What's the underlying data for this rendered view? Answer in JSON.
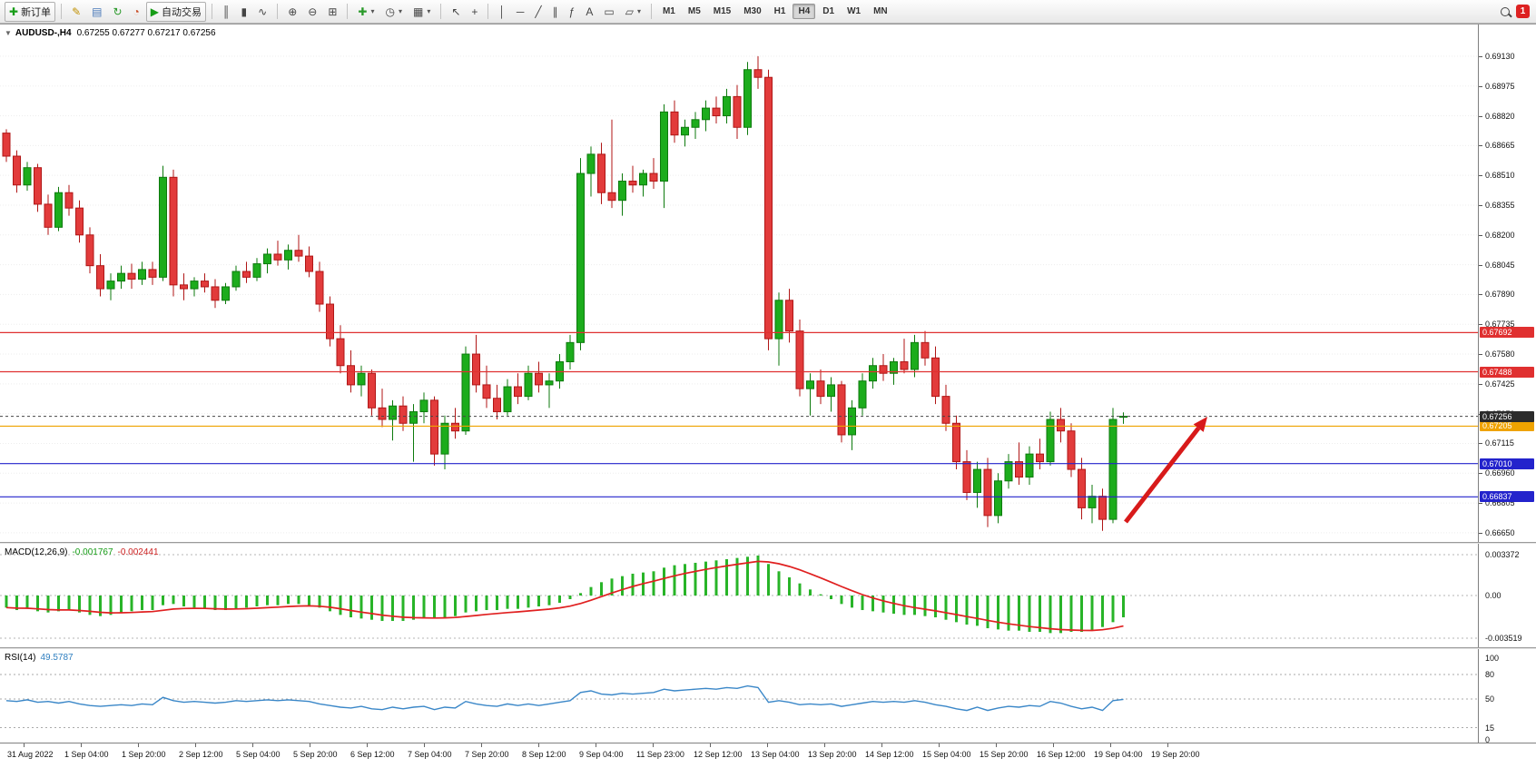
{
  "toolbar": {
    "timeframes": [
      "M1",
      "M5",
      "M15",
      "M30",
      "H1",
      "H4",
      "D1",
      "W1",
      "MN"
    ],
    "active_timeframe": "H4",
    "notification_count": "1",
    "items": [
      {
        "kind": "labelbtn",
        "name": "new-order-button",
        "glyph": "✚",
        "color": "#169c16",
        "label": "新订单"
      },
      {
        "kind": "sep"
      },
      {
        "kind": "icon",
        "name": "metaeditor-icon",
        "glyph": "✎",
        "color": "#c09000"
      },
      {
        "kind": "icon",
        "name": "market-watch-icon",
        "glyph": "▤",
        "color": "#4878b8"
      },
      {
        "kind": "icon",
        "name": "refresh-icon",
        "glyph": "↻",
        "color": "#2a9a2a"
      },
      {
        "kind": "icon",
        "name": "history-center-icon",
        "glyph": "◔",
        "color": "#c84820"
      },
      {
        "kind": "labelbtn",
        "name": "autotrading-button",
        "glyph": "▶",
        "color": "#169c16",
        "label": "自动交易"
      },
      {
        "kind": "sep"
      },
      {
        "kind": "icon",
        "name": "bar-chart-icon",
        "glyph": "║",
        "color": "#444"
      },
      {
        "kind": "icon",
        "name": "candlestick-icon",
        "glyph": "▮",
        "color": "#444"
      },
      {
        "kind": "icon",
        "name": "line-chart-icon",
        "glyph": "∿",
        "color": "#444"
      },
      {
        "kind": "sep"
      },
      {
        "kind": "icon",
        "name": "zoom-in-icon",
        "glyph": "⊕",
        "color": "#444"
      },
      {
        "kind": "icon",
        "name": "zoom-out-icon",
        "glyph": "⊖",
        "color": "#444"
      },
      {
        "kind": "icon",
        "name": "tile-windows-icon",
        "glyph": "⊞",
        "color": "#444"
      },
      {
        "kind": "sep"
      },
      {
        "kind": "icon",
        "name": "indicators-icon",
        "glyph": "✚",
        "color": "#2a9a2a",
        "caret": true
      },
      {
        "kind": "icon",
        "name": "periods-icon",
        "glyph": "◷",
        "color": "#444",
        "caret": true
      },
      {
        "kind": "icon",
        "name": "templates-icon",
        "glyph": "▦",
        "color": "#444",
        "caret": true
      },
      {
        "kind": "sep"
      },
      {
        "kind": "icon",
        "name": "cursor-icon",
        "glyph": "↖",
        "color": "#444"
      },
      {
        "kind": "icon",
        "name": "crosshair-icon",
        "glyph": "+",
        "color": "#444"
      },
      {
        "kind": "sep"
      },
      {
        "kind": "icon",
        "name": "vertical-line-icon",
        "glyph": "│",
        "color": "#444"
      },
      {
        "kind": "icon",
        "name": "horizontal-line-icon",
        "glyph": "─",
        "color": "#444"
      },
      {
        "kind": "icon",
        "name": "trendline-icon",
        "glyph": "╱",
        "color": "#444"
      },
      {
        "kind": "icon",
        "name": "channel-icon",
        "glyph": "∥",
        "color": "#444"
      },
      {
        "kind": "icon",
        "name": "fibonacci-icon",
        "glyph": "ƒ",
        "color": "#444"
      },
      {
        "kind": "icon",
        "name": "text-icon",
        "glyph": "A",
        "color": "#444"
      },
      {
        "kind": "icon",
        "name": "label-icon",
        "glyph": "▭",
        "color": "#444"
      },
      {
        "kind": "icon",
        "name": "shapes-icon",
        "glyph": "▱",
        "color": "#444",
        "caret": true
      },
      {
        "kind": "sep"
      },
      {
        "kind": "tfset"
      },
      {
        "kind": "spacer"
      },
      {
        "kind": "icon",
        "name": "search-icon",
        "shape": "lens"
      },
      {
        "kind": "badge",
        "name": "notification-badge"
      }
    ]
  },
  "chart": {
    "one_click_glyph": "▼",
    "title_symbol": "AUDUSD-,H4",
    "title_ohlc": "0.67255 0.67277 0.67217 0.67256"
  },
  "chart_data": {
    "type": "candlestick",
    "symbol": "AUDUSD-",
    "timeframe": "H4",
    "ohlc_display": {
      "open": "0.67255",
      "high": "0.67277",
      "low": "0.67217",
      "close": "0.67256"
    },
    "colors": {
      "up": "#1cac1c",
      "up_border": "#0d7a0d",
      "down": "#e23b3b",
      "down_border": "#b01616",
      "macd_hist": "#28b428",
      "macd_signal": "#e02020",
      "rsi_line": "#3a87c8",
      "hline_red": "#e03030",
      "hline_orange": "#efa300",
      "hline_blue": "#2323cc",
      "current_label_bg": "#2b2b2b",
      "arrow": "#d81a1a"
    },
    "price_axis_labels": [
      "0.69130",
      "0.68975",
      "0.68820",
      "0.68665",
      "0.68510",
      "0.68355",
      "0.68200",
      "0.68045",
      "0.67890",
      "0.67735",
      "0.67580",
      "0.67425",
      "0.67270",
      "0.67115",
      "0.66960",
      "0.66805",
      "0.66650"
    ],
    "time_axis_labels": [
      "31 Aug 2022",
      "1 Sep 04:00",
      "1 Sep 20:00",
      "2 Sep 12:00",
      "5 Sep 04:00",
      "5 Sep 20:00",
      "6 Sep 12:00",
      "7 Sep 04:00",
      "7 Sep 20:00",
      "8 Sep 12:00",
      "9 Sep 04:00",
      "11 Sep 23:00",
      "12 Sep 12:00",
      "13 Sep 04:00",
      "13 Sep 20:00",
      "14 Sep 12:00",
      "15 Sep 04:00",
      "15 Sep 20:00",
      "16 Sep 12:00",
      "19 Sep 04:00",
      "19 Sep 20:00"
    ],
    "hlines": [
      {
        "price": 0.67692,
        "label": "0.67692",
        "color_key": "hline_red"
      },
      {
        "price": 0.67488,
        "label": "0.67488",
        "color_key": "hline_red"
      },
      {
        "price": 0.67205,
        "label": "0.67205",
        "color_key": "hline_orange"
      },
      {
        "price": 0.6701,
        "label": "0.67010",
        "color_key": "hline_blue"
      },
      {
        "price": 0.66837,
        "label": "0.66837",
        "color_key": "hline_blue"
      }
    ],
    "current_price": {
      "value": 0.67256,
      "label": "0.67256"
    },
    "annotation_arrow": {
      "from": [
        1240,
        548
      ],
      "to": [
        1330,
        432
      ]
    },
    "candles": [
      [
        0.6873,
        0.6875,
        0.6858,
        0.6861
      ],
      [
        0.6861,
        0.6864,
        0.6842,
        0.6846
      ],
      [
        0.6846,
        0.6858,
        0.6843,
        0.6855
      ],
      [
        0.6855,
        0.6857,
        0.6832,
        0.6836
      ],
      [
        0.6836,
        0.6841,
        0.682,
        0.6824
      ],
      [
        0.6824,
        0.6845,
        0.6822,
        0.6842
      ],
      [
        0.6842,
        0.6846,
        0.683,
        0.6834
      ],
      [
        0.6834,
        0.6838,
        0.6816,
        0.682
      ],
      [
        0.682,
        0.6824,
        0.68,
        0.6804
      ],
      [
        0.6804,
        0.681,
        0.6788,
        0.6792
      ],
      [
        0.6792,
        0.68,
        0.6786,
        0.6796
      ],
      [
        0.6796,
        0.6804,
        0.6792,
        0.68
      ],
      [
        0.68,
        0.6805,
        0.6792,
        0.6797
      ],
      [
        0.6797,
        0.6806,
        0.6794,
        0.6802
      ],
      [
        0.6802,
        0.6806,
        0.6794,
        0.6798
      ],
      [
        0.6798,
        0.6856,
        0.6796,
        0.685
      ],
      [
        0.685,
        0.6854,
        0.6788,
        0.6794
      ],
      [
        0.6794,
        0.68,
        0.6786,
        0.6792
      ],
      [
        0.6792,
        0.6798,
        0.6788,
        0.6796
      ],
      [
        0.6796,
        0.68,
        0.679,
        0.6793
      ],
      [
        0.6793,
        0.6797,
        0.6782,
        0.6786
      ],
      [
        0.6786,
        0.6795,
        0.6784,
        0.6793
      ],
      [
        0.6793,
        0.6804,
        0.6791,
        0.6801
      ],
      [
        0.6801,
        0.6806,
        0.6795,
        0.6798
      ],
      [
        0.6798,
        0.6808,
        0.6796,
        0.6805
      ],
      [
        0.6805,
        0.6813,
        0.68,
        0.681
      ],
      [
        0.681,
        0.6817,
        0.6804,
        0.6807
      ],
      [
        0.6807,
        0.6815,
        0.6802,
        0.6812
      ],
      [
        0.6812,
        0.682,
        0.6806,
        0.6809
      ],
      [
        0.6809,
        0.6814,
        0.6798,
        0.6801
      ],
      [
        0.6801,
        0.6806,
        0.678,
        0.6784
      ],
      [
        0.6784,
        0.6788,
        0.6762,
        0.6766
      ],
      [
        0.6766,
        0.6773,
        0.6748,
        0.6752
      ],
      [
        0.6752,
        0.676,
        0.6738,
        0.6742
      ],
      [
        0.6742,
        0.6752,
        0.6736,
        0.6748
      ],
      [
        0.6748,
        0.675,
        0.6726,
        0.673
      ],
      [
        0.673,
        0.674,
        0.672,
        0.6724
      ],
      [
        0.6724,
        0.6734,
        0.6713,
        0.6731
      ],
      [
        0.6731,
        0.6736,
        0.6718,
        0.6722
      ],
      [
        0.6722,
        0.6732,
        0.6702,
        0.6728
      ],
      [
        0.6728,
        0.6738,
        0.6722,
        0.6734
      ],
      [
        0.6734,
        0.6736,
        0.67,
        0.6706
      ],
      [
        0.6706,
        0.6726,
        0.6698,
        0.6722
      ],
      [
        0.6722,
        0.673,
        0.6714,
        0.6718
      ],
      [
        0.6718,
        0.6762,
        0.6716,
        0.6758
      ],
      [
        0.6758,
        0.6768,
        0.6738,
        0.6742
      ],
      [
        0.6742,
        0.6752,
        0.673,
        0.6735
      ],
      [
        0.6735,
        0.6742,
        0.6724,
        0.6728
      ],
      [
        0.6728,
        0.6745,
        0.6726,
        0.6741
      ],
      [
        0.6741,
        0.6748,
        0.6732,
        0.6736
      ],
      [
        0.6736,
        0.6752,
        0.6734,
        0.6748
      ],
      [
        0.6748,
        0.6754,
        0.6738,
        0.6742
      ],
      [
        0.6742,
        0.6748,
        0.673,
        0.6744
      ],
      [
        0.6744,
        0.6758,
        0.674,
        0.6754
      ],
      [
        0.6754,
        0.6768,
        0.675,
        0.6764
      ],
      [
        0.6764,
        0.686,
        0.676,
        0.6852
      ],
      [
        0.6852,
        0.6866,
        0.684,
        0.6862
      ],
      [
        0.6862,
        0.6868,
        0.6836,
        0.6842
      ],
      [
        0.6842,
        0.688,
        0.6834,
        0.6838
      ],
      [
        0.6838,
        0.6852,
        0.683,
        0.6848
      ],
      [
        0.6848,
        0.6856,
        0.6842,
        0.6846
      ],
      [
        0.6846,
        0.6854,
        0.684,
        0.6852
      ],
      [
        0.6852,
        0.686,
        0.6844,
        0.6848
      ],
      [
        0.6848,
        0.6888,
        0.6834,
        0.6884
      ],
      [
        0.6884,
        0.689,
        0.6868,
        0.6872
      ],
      [
        0.6872,
        0.688,
        0.6866,
        0.6876
      ],
      [
        0.6876,
        0.6884,
        0.687,
        0.688
      ],
      [
        0.688,
        0.689,
        0.6874,
        0.6886
      ],
      [
        0.6886,
        0.6892,
        0.6878,
        0.6882
      ],
      [
        0.6882,
        0.6896,
        0.6878,
        0.6892
      ],
      [
        0.6892,
        0.6898,
        0.687,
        0.6876
      ],
      [
        0.6876,
        0.691,
        0.6872,
        0.6906
      ],
      [
        0.6906,
        0.6913,
        0.6896,
        0.6902
      ],
      [
        0.6902,
        0.6906,
        0.676,
        0.6766
      ],
      [
        0.6766,
        0.679,
        0.6752,
        0.6786
      ],
      [
        0.6786,
        0.6792,
        0.6764,
        0.677
      ],
      [
        0.677,
        0.6776,
        0.6736,
        0.674
      ],
      [
        0.674,
        0.6748,
        0.6726,
        0.6744
      ],
      [
        0.6744,
        0.675,
        0.6732,
        0.6736
      ],
      [
        0.6736,
        0.6746,
        0.6728,
        0.6742
      ],
      [
        0.6742,
        0.6744,
        0.6712,
        0.6716
      ],
      [
        0.6716,
        0.6734,
        0.6708,
        0.673
      ],
      [
        0.673,
        0.6748,
        0.6726,
        0.6744
      ],
      [
        0.6744,
        0.6756,
        0.674,
        0.6752
      ],
      [
        0.6752,
        0.6758,
        0.6744,
        0.6748
      ],
      [
        0.6748,
        0.6756,
        0.6742,
        0.6754
      ],
      [
        0.6754,
        0.6766,
        0.6748,
        0.675
      ],
      [
        0.675,
        0.6768,
        0.6746,
        0.6764
      ],
      [
        0.6764,
        0.677,
        0.6752,
        0.6756
      ],
      [
        0.6756,
        0.6762,
        0.6732,
        0.6736
      ],
      [
        0.6736,
        0.6742,
        0.6718,
        0.6722
      ],
      [
        0.6722,
        0.6726,
        0.6698,
        0.6702
      ],
      [
        0.6702,
        0.6708,
        0.6682,
        0.6686
      ],
      [
        0.6686,
        0.6702,
        0.6678,
        0.6698
      ],
      [
        0.6698,
        0.6704,
        0.6668,
        0.6674
      ],
      [
        0.6674,
        0.6696,
        0.667,
        0.6692
      ],
      [
        0.6692,
        0.6706,
        0.6688,
        0.6702
      ],
      [
        0.6702,
        0.6712,
        0.669,
        0.6694
      ],
      [
        0.6694,
        0.671,
        0.669,
        0.6706
      ],
      [
        0.6706,
        0.6714,
        0.6698,
        0.6702
      ],
      [
        0.6702,
        0.6728,
        0.67,
        0.6724
      ],
      [
        0.6724,
        0.673,
        0.6712,
        0.6718
      ],
      [
        0.6718,
        0.6722,
        0.6694,
        0.6698
      ],
      [
        0.6698,
        0.6704,
        0.6672,
        0.6678
      ],
      [
        0.6678,
        0.669,
        0.667,
        0.6684
      ],
      [
        0.6684,
        0.6688,
        0.6666,
        0.6672
      ],
      [
        0.6672,
        0.673,
        0.667,
        0.6724
      ],
      [
        0.67255,
        0.67277,
        0.67217,
        0.67256
      ]
    ],
    "indicators": {
      "macd": {
        "name": "MACD(12,26,9)",
        "value_main": "-0.001767",
        "value_signal": "-0.002441",
        "axis_labels": [
          {
            "value": 0.003372,
            "label": "0.003372"
          },
          {
            "value": 0,
            "label": "0.00"
          },
          {
            "value": -0.003519,
            "label": "-0.003519"
          }
        ],
        "histogram": [
          -0.001,
          -0.0012,
          -0.0011,
          -0.0013,
          -0.0014,
          -0.0013,
          -0.0012,
          -0.0014,
          -0.0016,
          -0.0017,
          -0.0016,
          -0.0014,
          -0.0013,
          -0.0012,
          -0.0012,
          -0.0008,
          -0.0007,
          -0.0009,
          -0.001,
          -0.0011,
          -0.0012,
          -0.0012,
          -0.0011,
          -0.001,
          -0.0009,
          -0.0008,
          -0.0008,
          -0.0007,
          -0.0007,
          -0.0008,
          -0.001,
          -0.0013,
          -0.0016,
          -0.0018,
          -0.0019,
          -0.002,
          -0.0021,
          -0.0021,
          -0.0021,
          -0.002,
          -0.0019,
          -0.0019,
          -0.0018,
          -0.0017,
          -0.0014,
          -0.0013,
          -0.0012,
          -0.0012,
          -0.0011,
          -0.0011,
          -0.001,
          -0.0009,
          -0.0008,
          -0.0006,
          -0.0003,
          0.0002,
          0.0007,
          0.0011,
          0.0014,
          0.0016,
          0.0018,
          0.0019,
          0.002,
          0.0023,
          0.0025,
          0.0026,
          0.0027,
          0.0028,
          0.0029,
          0.003,
          0.0031,
          0.0032,
          0.0033,
          0.0026,
          0.002,
          0.0015,
          0.001,
          0.0005,
          0.0001,
          -0.0003,
          -0.0007,
          -0.001,
          -0.0012,
          -0.0013,
          -0.0014,
          -0.0015,
          -0.0016,
          -0.0016,
          -0.0017,
          -0.0018,
          -0.002,
          -0.0022,
          -0.0024,
          -0.0025,
          -0.0027,
          -0.0028,
          -0.0029,
          -0.0029,
          -0.003,
          -0.003,
          -0.0031,
          -0.0031,
          -0.003,
          -0.003,
          -0.0029,
          -0.0026,
          -0.0022,
          -0.0018
        ],
        "signal_period": 9
      },
      "rsi": {
        "name": "RSI(14)",
        "value": "49.5787",
        "levels": [
          {
            "value": 100,
            "label": "100"
          },
          {
            "value": 80,
            "label": "80"
          },
          {
            "value": 50,
            "label": "50"
          },
          {
            "value": 15,
            "label": "15"
          },
          {
            "value": 0,
            "label": "0"
          }
        ],
        "values": [
          48,
          47,
          49,
          46,
          47,
          45,
          47,
          44,
          42,
          41,
          42,
          43,
          42,
          44,
          43,
          52,
          48,
          46,
          47,
          46,
          45,
          46,
          48,
          47,
          48,
          49,
          48,
          49,
          48,
          47,
          44,
          42,
          40,
          39,
          41,
          38,
          37,
          40,
          38,
          40,
          41,
          37,
          40,
          39,
          47,
          44,
          42,
          41,
          44,
          42,
          44,
          42,
          44,
          46,
          48,
          58,
          60,
          56,
          55,
          57,
          56,
          57,
          58,
          62,
          60,
          61,
          62,
          63,
          62,
          64,
          63,
          66,
          64,
          46,
          48,
          46,
          43,
          44,
          43,
          44,
          41,
          43,
          45,
          47,
          46,
          47,
          46,
          48,
          46,
          43,
          41,
          38,
          36,
          40,
          36,
          39,
          41,
          40,
          42,
          41,
          47,
          45,
          41,
          38,
          40,
          36,
          48,
          49.58
        ]
      }
    }
  }
}
